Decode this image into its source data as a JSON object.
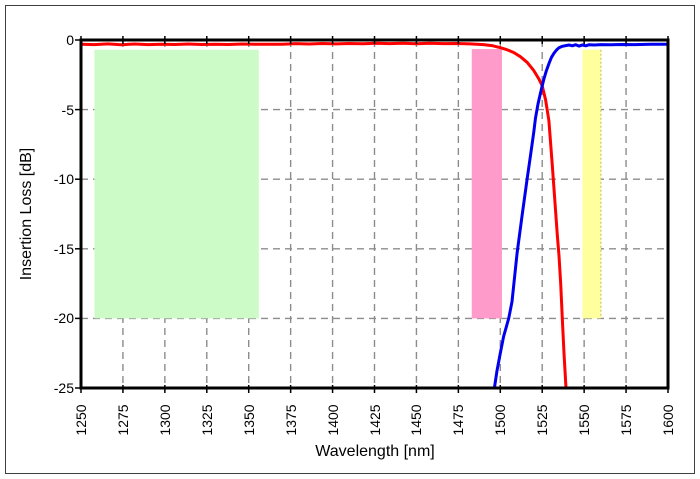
{
  "figure": {
    "background": "#ffffff",
    "border_color": "#3f3f3f"
  },
  "chart_data": {
    "type": "line",
    "title": "",
    "xlabel": "Wavelength [nm]",
    "ylabel": "Insertion Loss [dB]",
    "xlim": [
      1250,
      1600
    ],
    "ylim": [
      -25,
      0
    ],
    "x_ticks": [
      1250,
      1275,
      1300,
      1325,
      1350,
      1375,
      1400,
      1425,
      1450,
      1475,
      1500,
      1525,
      1550,
      1575,
      1600
    ],
    "y_ticks": [
      0,
      -5,
      -10,
      -15,
      -20,
      -25
    ],
    "grid": "dashed",
    "grid_color": "#8c8c8c",
    "axis_color": "#000000",
    "legend": "none",
    "regions": [
      {
        "name": "region-green-band",
        "x1": 1258,
        "x2": 1356,
        "y1": -20,
        "y2": -0.7,
        "color": "#ccfbc8"
      },
      {
        "name": "region-pink-band",
        "x1": 1483,
        "x2": 1501,
        "y1": -20,
        "y2": -0.65,
        "color": "#ff9bcb"
      },
      {
        "name": "region-yellow-band",
        "x1": 1549,
        "x2": 1560,
        "y1": -20,
        "y2": -0.7,
        "color": "#ffff9e",
        "edge_right_color": "#c8c864"
      }
    ],
    "series": [
      {
        "name": "red-curve",
        "color": "#ff0000",
        "points": [
          [
            1250,
            -0.3
          ],
          [
            1258,
            -0.33
          ],
          [
            1266,
            -0.28
          ],
          [
            1274,
            -0.34
          ],
          [
            1282,
            -0.29
          ],
          [
            1290,
            -0.33
          ],
          [
            1298,
            -0.3
          ],
          [
            1306,
            -0.32
          ],
          [
            1314,
            -0.29
          ],
          [
            1322,
            -0.32
          ],
          [
            1330,
            -0.3
          ],
          [
            1338,
            -0.32
          ],
          [
            1346,
            -0.29
          ],
          [
            1354,
            -0.31
          ],
          [
            1362,
            -0.3
          ],
          [
            1370,
            -0.3
          ],
          [
            1378,
            -0.26
          ],
          [
            1386,
            -0.29
          ],
          [
            1394,
            -0.25
          ],
          [
            1402,
            -0.28
          ],
          [
            1410,
            -0.25
          ],
          [
            1418,
            -0.27
          ],
          [
            1426,
            -0.24
          ],
          [
            1434,
            -0.26
          ],
          [
            1442,
            -0.24
          ],
          [
            1450,
            -0.27
          ],
          [
            1458,
            -0.24
          ],
          [
            1466,
            -0.26
          ],
          [
            1474,
            -0.25
          ],
          [
            1482,
            -0.28
          ],
          [
            1490,
            -0.33
          ],
          [
            1495,
            -0.4
          ],
          [
            1500,
            -0.55
          ],
          [
            1504,
            -0.7
          ],
          [
            1508,
            -0.9
          ],
          [
            1512,
            -1.2
          ],
          [
            1516,
            -1.6
          ],
          [
            1520,
            -2.2
          ],
          [
            1523,
            -2.8
          ],
          [
            1525,
            -3.3
          ],
          [
            1527,
            -4.3
          ],
          [
            1529,
            -5.8
          ],
          [
            1531,
            -9.0
          ],
          [
            1532.5,
            -11.5
          ],
          [
            1534,
            -14.0
          ],
          [
            1535,
            -15.5
          ],
          [
            1536,
            -17.5
          ],
          [
            1537,
            -20.0
          ],
          [
            1538,
            -22.5
          ],
          [
            1539.2,
            -25.0
          ]
        ]
      },
      {
        "name": "blue-curve",
        "color": "#0000ee",
        "points": [
          [
            1496.5,
            -25.0
          ],
          [
            1498,
            -23.8
          ],
          [
            1500,
            -22.5
          ],
          [
            1502,
            -21.3
          ],
          [
            1505,
            -20.0
          ],
          [
            1507,
            -18.8
          ],
          [
            1510,
            -15.3
          ],
          [
            1513,
            -12.6
          ],
          [
            1516,
            -10.0
          ],
          [
            1518,
            -8.3
          ],
          [
            1520,
            -6.6
          ],
          [
            1521,
            -5.6
          ],
          [
            1522.5,
            -4.6
          ],
          [
            1524,
            -3.8
          ],
          [
            1525,
            -3.3
          ],
          [
            1526,
            -2.8
          ],
          [
            1527.5,
            -2.2
          ],
          [
            1529,
            -1.7
          ],
          [
            1530.5,
            -1.25
          ],
          [
            1532,
            -0.95
          ],
          [
            1533.5,
            -0.72
          ],
          [
            1535,
            -0.55
          ],
          [
            1537,
            -0.45
          ],
          [
            1539,
            -0.4
          ],
          [
            1541,
            -0.36
          ],
          [
            1543,
            -0.42
          ],
          [
            1545,
            -0.34
          ],
          [
            1547,
            -0.44
          ],
          [
            1549,
            -0.35
          ],
          [
            1551,
            -0.42
          ],
          [
            1553,
            -0.34
          ],
          [
            1556,
            -0.36
          ],
          [
            1560,
            -0.33
          ],
          [
            1566,
            -0.34
          ],
          [
            1572,
            -0.32
          ],
          [
            1580,
            -0.33
          ],
          [
            1590,
            -0.31
          ],
          [
            1600,
            -0.31
          ]
        ]
      }
    ]
  }
}
